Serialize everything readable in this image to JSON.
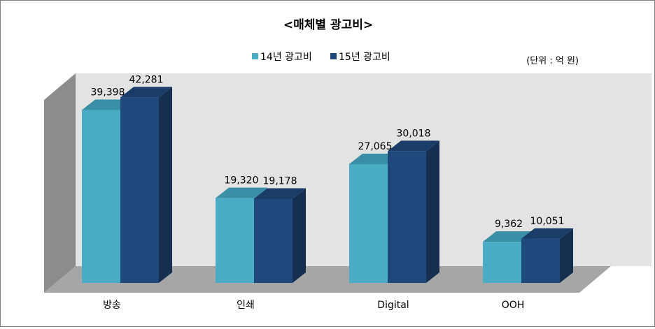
{
  "chart_data": {
    "type": "bar",
    "title": "<매체별 광고비>",
    "unit_label": "(단위 : 억 원)",
    "categories": [
      "방송",
      "인쇄",
      "Digital",
      "OOH"
    ],
    "series": [
      {
        "name": "14년 광고비",
        "values": [
          39398,
          19320,
          27065,
          9362
        ],
        "labels": [
          "39,398",
          "19,320",
          "27,065",
          "9,362"
        ],
        "color": "#4bacc6"
      },
      {
        "name": "15년 광고비",
        "values": [
          42281,
          19178,
          30018,
          10051
        ],
        "labels": [
          "42,281",
          "19,178",
          "30,018",
          "10,051"
        ],
        "color": "#1f497d"
      }
    ],
    "ylim": [
      0,
      45000
    ],
    "grid": false,
    "legend": "top-center",
    "style": "3d-column"
  }
}
